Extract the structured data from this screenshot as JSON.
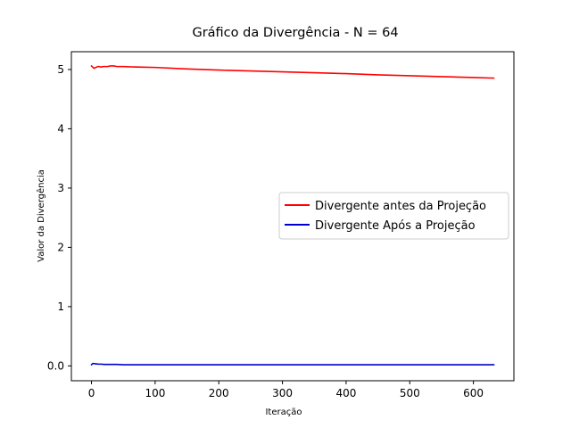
{
  "chart_data": {
    "type": "line",
    "title": "Gráfico da Divergência - N = 64",
    "xlabel": "Iteração",
    "ylabel": "Valor da Divergência",
    "xlim": [
      -31.6,
      663.6
    ],
    "ylim": [
      -0.25,
      5.3
    ],
    "xticks": [
      0,
      100,
      200,
      300,
      400,
      500,
      600
    ],
    "yticks": [
      0,
      1,
      2,
      3,
      4,
      5
    ],
    "xtick_labels": [
      "0",
      "100",
      "200",
      "300",
      "400",
      "500",
      "600"
    ],
    "ytick_labels": [
      "0.0",
      "1",
      "2",
      "3",
      "4",
      "5"
    ],
    "legend_position": "center-right",
    "series": [
      {
        "name": "Divergente antes da Projeção",
        "color": "#ff0000",
        "x": [
          0,
          2,
          4,
          6,
          8,
          10,
          12,
          15,
          18,
          20,
          25,
          30,
          35,
          40,
          50,
          60,
          80,
          100,
          150,
          200,
          250,
          300,
          350,
          400,
          450,
          500,
          550,
          600,
          632
        ],
        "y": [
          5.06,
          5.04,
          5.02,
          5.03,
          5.04,
          5.05,
          5.05,
          5.04,
          5.05,
          5.05,
          5.05,
          5.06,
          5.06,
          5.05,
          5.05,
          5.045,
          5.04,
          5.035,
          5.01,
          4.99,
          4.975,
          4.96,
          4.945,
          4.93,
          4.91,
          4.895,
          4.88,
          4.865,
          4.855
        ]
      },
      {
        "name": "Divergente Após a Projeção",
        "color": "#0000cc",
        "x": [
          0,
          2,
          4,
          6,
          8,
          10,
          15,
          20,
          30,
          40,
          50,
          60,
          100,
          200,
          300,
          400,
          500,
          600,
          632
        ],
        "y": [
          0.02,
          0.04,
          0.04,
          0.035,
          0.035,
          0.03,
          0.03,
          0.025,
          0.025,
          0.025,
          0.02,
          0.02,
          0.02,
          0.02,
          0.02,
          0.02,
          0.02,
          0.02,
          0.02
        ]
      }
    ]
  }
}
